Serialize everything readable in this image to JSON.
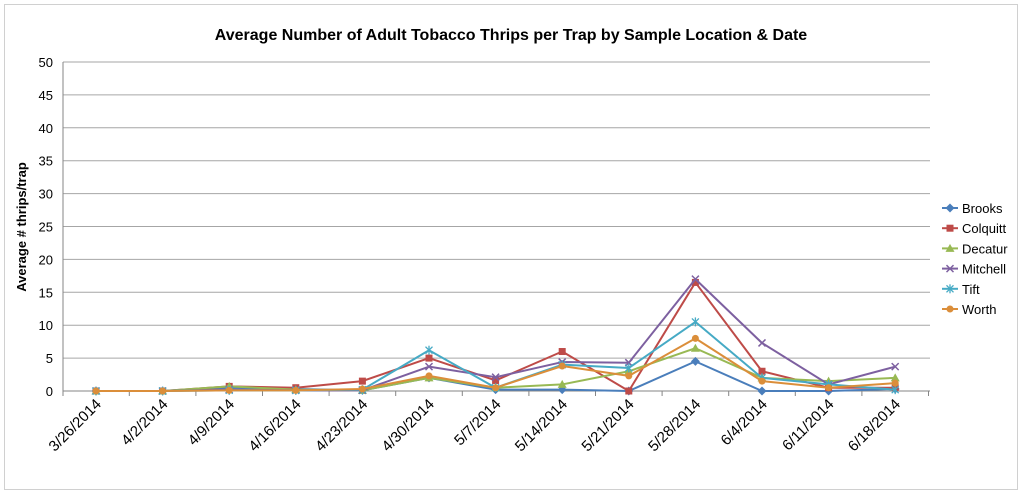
{
  "chart_data": {
    "type": "line",
    "title": "Average Number of Adult Tobacco Thrips per Trap by Sample Location & Date",
    "xlabel": "",
    "ylabel": "Average # thrips/trap",
    "ylim": [
      0,
      50
    ],
    "yticks": [
      0,
      5,
      10,
      15,
      20,
      25,
      30,
      35,
      40,
      45,
      50
    ],
    "grid": true,
    "legend_position": "right",
    "categories": [
      "3/26/2014",
      "4/2/2014",
      "4/9/2014",
      "4/16/2014",
      "4/23/2014",
      "4/30/2014",
      "5/7/2014",
      "5/14/2014",
      "5/21/2014",
      "5/28/2014",
      "6/4/2014",
      "6/11/2014",
      "6/18/2014"
    ],
    "series": [
      {
        "name": "Brooks",
        "color": "#4a7ebb",
        "marker": "diamond",
        "values": [
          0,
          0,
          0.5,
          0.3,
          0.1,
          2.0,
          0.2,
          0.2,
          0.0,
          4.5,
          0.0,
          0.0,
          0.3
        ]
      },
      {
        "name": "Colquitt",
        "color": "#be4b48",
        "marker": "square",
        "values": [
          0,
          0,
          0.7,
          0.5,
          1.5,
          5.0,
          1.6,
          6.0,
          0.0,
          16.5,
          3.0,
          0.5,
          0.5
        ]
      },
      {
        "name": "Decatur",
        "color": "#98b954",
        "marker": "triangle",
        "values": [
          0,
          0,
          0.7,
          0.2,
          0.1,
          2.0,
          0.5,
          1.0,
          3.0,
          6.5,
          2.0,
          1.5,
          2.0
        ]
      },
      {
        "name": "Mitchell",
        "color": "#7d60a0",
        "marker": "x",
        "values": [
          0,
          0,
          0.2,
          0.1,
          0.1,
          3.7,
          2.1,
          4.4,
          4.3,
          17.0,
          7.3,
          1.0,
          3.7
        ]
      },
      {
        "name": "Tift",
        "color": "#46aac5",
        "marker": "star",
        "values": [
          0,
          0,
          0.1,
          0.1,
          0.2,
          6.2,
          0.5,
          4.0,
          3.5,
          10.5,
          2.0,
          1.0,
          0.2
        ]
      },
      {
        "name": "Worth",
        "color": "#db8e3a",
        "marker": "circle",
        "values": [
          0,
          0,
          0.1,
          0.1,
          0.3,
          2.3,
          0.5,
          3.8,
          2.3,
          8.0,
          1.5,
          0.5,
          1.2
        ]
      }
    ]
  }
}
